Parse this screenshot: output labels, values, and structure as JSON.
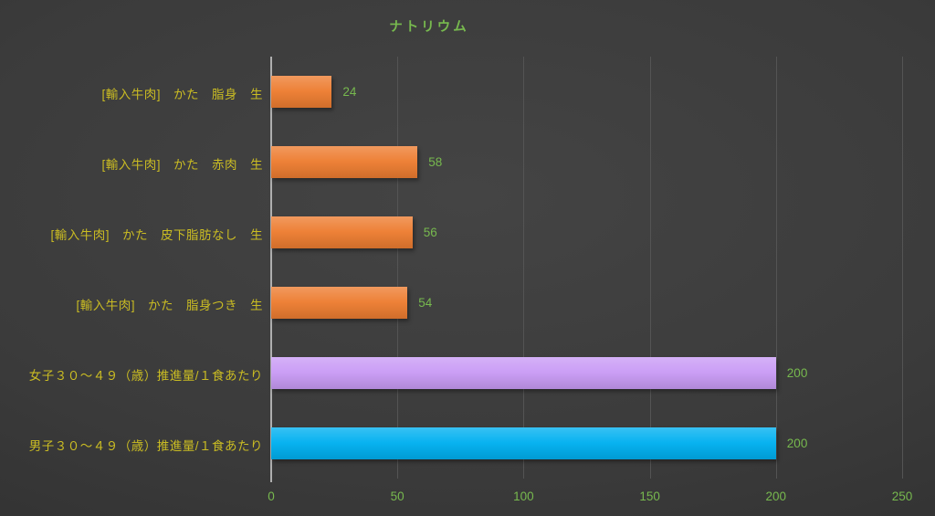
{
  "chart_data": {
    "type": "bar",
    "orientation": "horizontal",
    "title": "ナトリウム",
    "categories": [
      "[輸入牛肉]　かた　脂身　生",
      "[輸入牛肉]　かた　赤肉　生",
      "[輸入牛肉]　かた　皮下脂肪なし　生",
      "[輸入牛肉]　かた　脂身つき　生",
      "女子３０～４９（歳）推進量/１食あたり",
      "男子３０～４９（歳）推進量/１食あたり"
    ],
    "values": [
      24,
      58,
      56,
      54,
      200,
      200
    ],
    "data_labels": [
      "24",
      "58",
      "56",
      "54",
      "200",
      "200"
    ],
    "bar_colors": [
      "#ED7D31",
      "#ED7D31",
      "#ED7D31",
      "#ED7D31",
      "#C99BF5",
      "#00B0F0"
    ],
    "x_ticks": [
      "0",
      "50",
      "100",
      "150",
      "200",
      "250"
    ],
    "x_tick_values": [
      0,
      50,
      100,
      150,
      200,
      250
    ],
    "xlim": [
      0,
      250
    ],
    "grid": true,
    "legend": "none",
    "colors": {
      "title": "#77B94E",
      "category_label": "#CABC23",
      "value_label": "#77B94E",
      "tick_label": "#77B94E",
      "gridline": "#545454",
      "axis_line": "#AFAFAF"
    }
  }
}
